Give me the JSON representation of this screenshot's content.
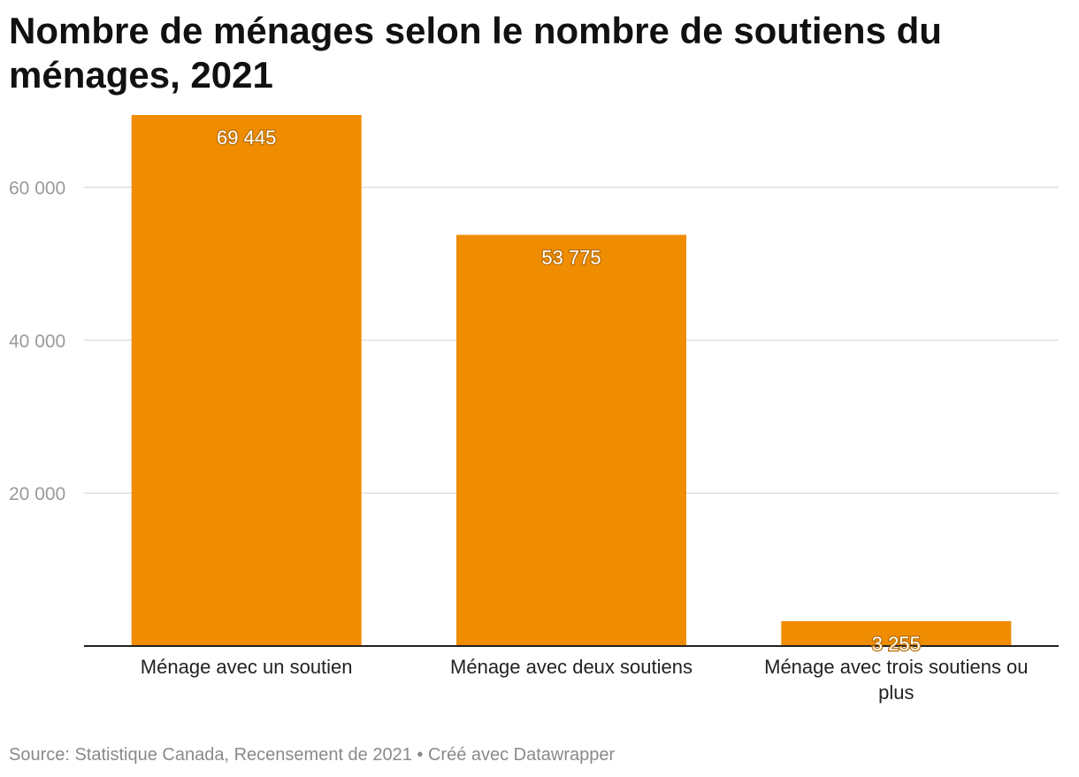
{
  "chart_data": {
    "type": "bar",
    "title": "Nombre de ménages selon le nombre de soutiens du ménages, 2021",
    "categories": [
      "Ménage avec un soutien",
      "Ménage avec deux soutiens",
      "Ménage avec trois soutiens ou plus"
    ],
    "values": [
      69445,
      53775,
      3255
    ],
    "value_labels": [
      "69 445",
      "53 775",
      "3 255"
    ],
    "yticks": [
      20000,
      40000,
      60000
    ],
    "ytick_labels": [
      "20 000",
      "40 000",
      "60 000"
    ],
    "ylim": [
      0,
      69445
    ],
    "grid": true,
    "xlabel": "",
    "ylabel": "",
    "bar_color": "#f08c00",
    "source": "Source: Statistique Canada, Recensement de 2021 • Créé avec Datawrapper"
  }
}
